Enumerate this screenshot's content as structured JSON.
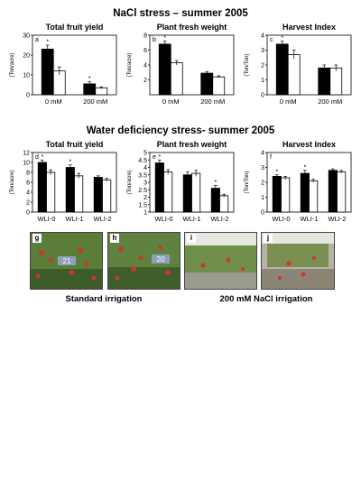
{
  "titles": {
    "nacl": "NaCl stress – summer 2005",
    "water": "Water deficiency stress- summer 2005"
  },
  "colors": {
    "treated": "#000000",
    "control": "#ffffff",
    "photo_green": "#4f7a3a",
    "photo_red": "#c63a2a"
  },
  "chart_data": [
    {
      "type": "bar",
      "panel": "a",
      "title": "Total fruit yield",
      "ylabel": "(Ton/acre)",
      "categories": [
        "0 mM",
        "200 mM"
      ],
      "ylim": [
        0,
        30
      ],
      "yticks": [
        "0",
        "10",
        "20",
        "30"
      ],
      "series": [
        {
          "values": [
            23,
            5.5
          ],
          "errors": [
            2,
            1
          ]
        },
        {
          "values": [
            12,
            3.5
          ],
          "errors": [
            2,
            0.5
          ]
        }
      ],
      "stars": [
        "*",
        "",
        "*",
        ""
      ]
    },
    {
      "type": "bar",
      "panel": "b",
      "title": "Plant fresh weight",
      "ylabel": "(Ton/acre)",
      "categories": [
        "0 mM",
        "200 mM"
      ],
      "ylim": [
        0,
        8
      ],
      "yticks": [
        "2",
        "4",
        "6",
        "8"
      ],
      "series": [
        {
          "values": [
            6.8,
            2.9
          ],
          "errors": [
            0.4,
            0.2
          ]
        },
        {
          "values": [
            4.3,
            2.4
          ],
          "errors": [
            0.3,
            0.15
          ]
        }
      ],
      "stars": [
        "*",
        "",
        "",
        ""
      ]
    },
    {
      "type": "bar",
      "panel": "c",
      "title": "Harvest Index",
      "ylabel": "(Ton/Ton)",
      "categories": [
        "0 mM",
        "200 mM"
      ],
      "ylim": [
        0,
        4
      ],
      "yticks": [
        "0",
        "1",
        "2",
        "3",
        "4"
      ],
      "series": [
        {
          "values": [
            3.4,
            1.8
          ],
          "errors": [
            0.2,
            0.2
          ]
        },
        {
          "values": [
            2.7,
            1.8
          ],
          "errors": [
            0.3,
            0.2
          ]
        }
      ],
      "stars": [
        "*",
        "",
        "",
        ""
      ]
    },
    {
      "type": "bar",
      "panel": "d",
      "title": "Total fruit yield",
      "ylabel": "(Ton/acre)",
      "categories": [
        "WLI-0",
        "WLI-1",
        "WLI-2"
      ],
      "ylim": [
        0,
        12
      ],
      "yticks": [
        "0",
        "2",
        "4",
        "6",
        "8",
        "10",
        "12"
      ],
      "series": [
        {
          "values": [
            10,
            9,
            7
          ],
          "errors": [
            0.5,
            0.5,
            0.3
          ]
        },
        {
          "values": [
            8,
            7.3,
            6.5
          ],
          "errors": [
            0.5,
            0.5,
            0.3
          ]
        }
      ],
      "stars": [
        "*",
        "",
        "*",
        "",
        "",
        ""
      ]
    },
    {
      "type": "bar",
      "panel": "e",
      "title": "Plant fresh weight",
      "ylabel": "(Ton/acre)",
      "categories": [
        "WLI-0",
        "WLI-1",
        "WLI-2"
      ],
      "ylim": [
        1,
        5
      ],
      "yticks": [
        "1",
        "1.5",
        "2",
        "2.5",
        "3",
        "3.5",
        "4",
        "4.5",
        "5"
      ],
      "series": [
        {
          "values": [
            4.3,
            3.5,
            2.6
          ],
          "errors": [
            0.2,
            0.2,
            0.2
          ]
        },
        {
          "values": [
            3.7,
            3.6,
            2.1
          ],
          "errors": [
            0.15,
            0.2,
            0.1
          ]
        }
      ],
      "stars": [
        "*",
        "",
        "",
        "",
        "*",
        ""
      ]
    },
    {
      "type": "bar",
      "panel": "f",
      "title": "Harvest Index",
      "ylabel": "(Ton/Ton)",
      "categories": [
        "WLI-0",
        "WLI-1",
        "WLI-2"
      ],
      "ylim": [
        0,
        4
      ],
      "yticks": [
        "0",
        "1",
        "2",
        "3",
        "4"
      ],
      "series": [
        {
          "values": [
            2.4,
            2.6,
            2.8
          ],
          "errors": [
            0.1,
            0.2,
            0.1
          ]
        },
        {
          "values": [
            2.3,
            2.1,
            2.7
          ],
          "errors": [
            0.1,
            0.1,
            0.1
          ]
        }
      ],
      "stars": [
        "*",
        "",
        "*",
        "",
        "",
        ""
      ]
    }
  ],
  "photos": [
    {
      "letter": "g",
      "tag": "21"
    },
    {
      "letter": "h",
      "tag": "20"
    },
    {
      "letter": "i",
      "tag": ""
    },
    {
      "letter": "j",
      "tag": ""
    }
  ],
  "captions": {
    "standard": "Standard irrigation",
    "nacl": "200 mM NaCl irrigation"
  }
}
